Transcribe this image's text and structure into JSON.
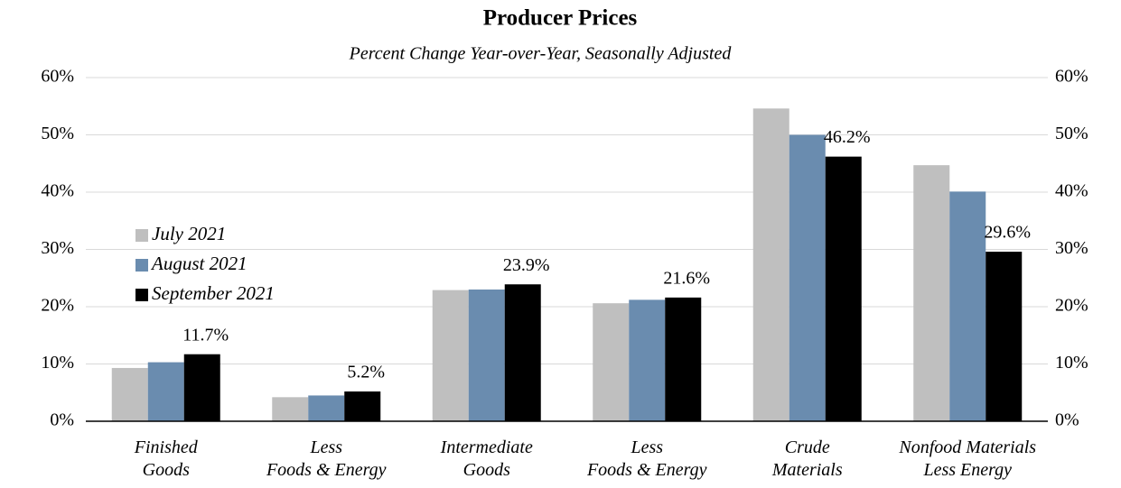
{
  "chart_data": {
    "type": "bar",
    "title": "Producer Prices",
    "subtitle": "Percent Change Year-over-Year, Seasonally Adjusted",
    "categories": [
      "Finished\nGoods",
      "Less\nFoods & Energy",
      "Intermediate\nGoods",
      "Less\nFoods & Energy",
      "Crude\nMaterials",
      "Nonfood Materials\nLess Energy"
    ],
    "series": [
      {
        "name": "July 2021",
        "color": "#bfbfbf",
        "values": [
          9.3,
          4.2,
          22.9,
          20.6,
          54.6,
          44.7
        ]
      },
      {
        "name": "August 2021",
        "color": "#6a8caf",
        "values": [
          10.3,
          4.5,
          23.0,
          21.2,
          50.0,
          40.1
        ]
      },
      {
        "name": "September 2021",
        "color": "#000000",
        "values": [
          11.7,
          5.2,
          23.9,
          21.6,
          46.2,
          29.6
        ],
        "value_labels": [
          "11.7%",
          "5.2%",
          "23.9%",
          "21.6%",
          "46.2%",
          "29.6%"
        ]
      }
    ],
    "ylim": [
      0,
      60
    ],
    "yticks": [
      {
        "value": 0,
        "label": "0%"
      },
      {
        "value": 10,
        "label": "10%"
      },
      {
        "value": 20,
        "label": "20%"
      },
      {
        "value": 30,
        "label": "30%"
      },
      {
        "value": 40,
        "label": "40%"
      },
      {
        "value": 50,
        "label": "50%"
      },
      {
        "value": 60,
        "label": "60%"
      }
    ],
    "y2lim": [
      0,
      60
    ],
    "y2ticks": [
      {
        "value": 0,
        "label": "0%"
      },
      {
        "value": 10,
        "label": "10%"
      },
      {
        "value": 20,
        "label": "20%"
      },
      {
        "value": 30,
        "label": "30%"
      },
      {
        "value": 40,
        "label": "40%"
      },
      {
        "value": 50,
        "label": "50%"
      },
      {
        "value": 60,
        "label": "60%"
      }
    ],
    "grid": true,
    "legend": "left"
  }
}
